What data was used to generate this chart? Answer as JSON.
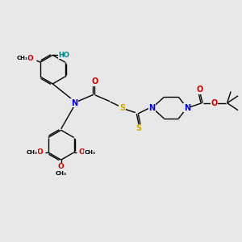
{
  "background_color": "#e8e8e8",
  "figsize": [
    3.0,
    3.0
  ],
  "dpi": 100,
  "bond_color": "#000000",
  "atom_colors": {
    "N": "#0000cc",
    "O": "#cc0000",
    "S": "#ccaa00",
    "H": "#008080",
    "C": "#000000"
  },
  "lw": 1.0,
  "fs": 6.5,
  "xlim": [
    0,
    10
  ],
  "ylim": [
    0,
    10
  ]
}
